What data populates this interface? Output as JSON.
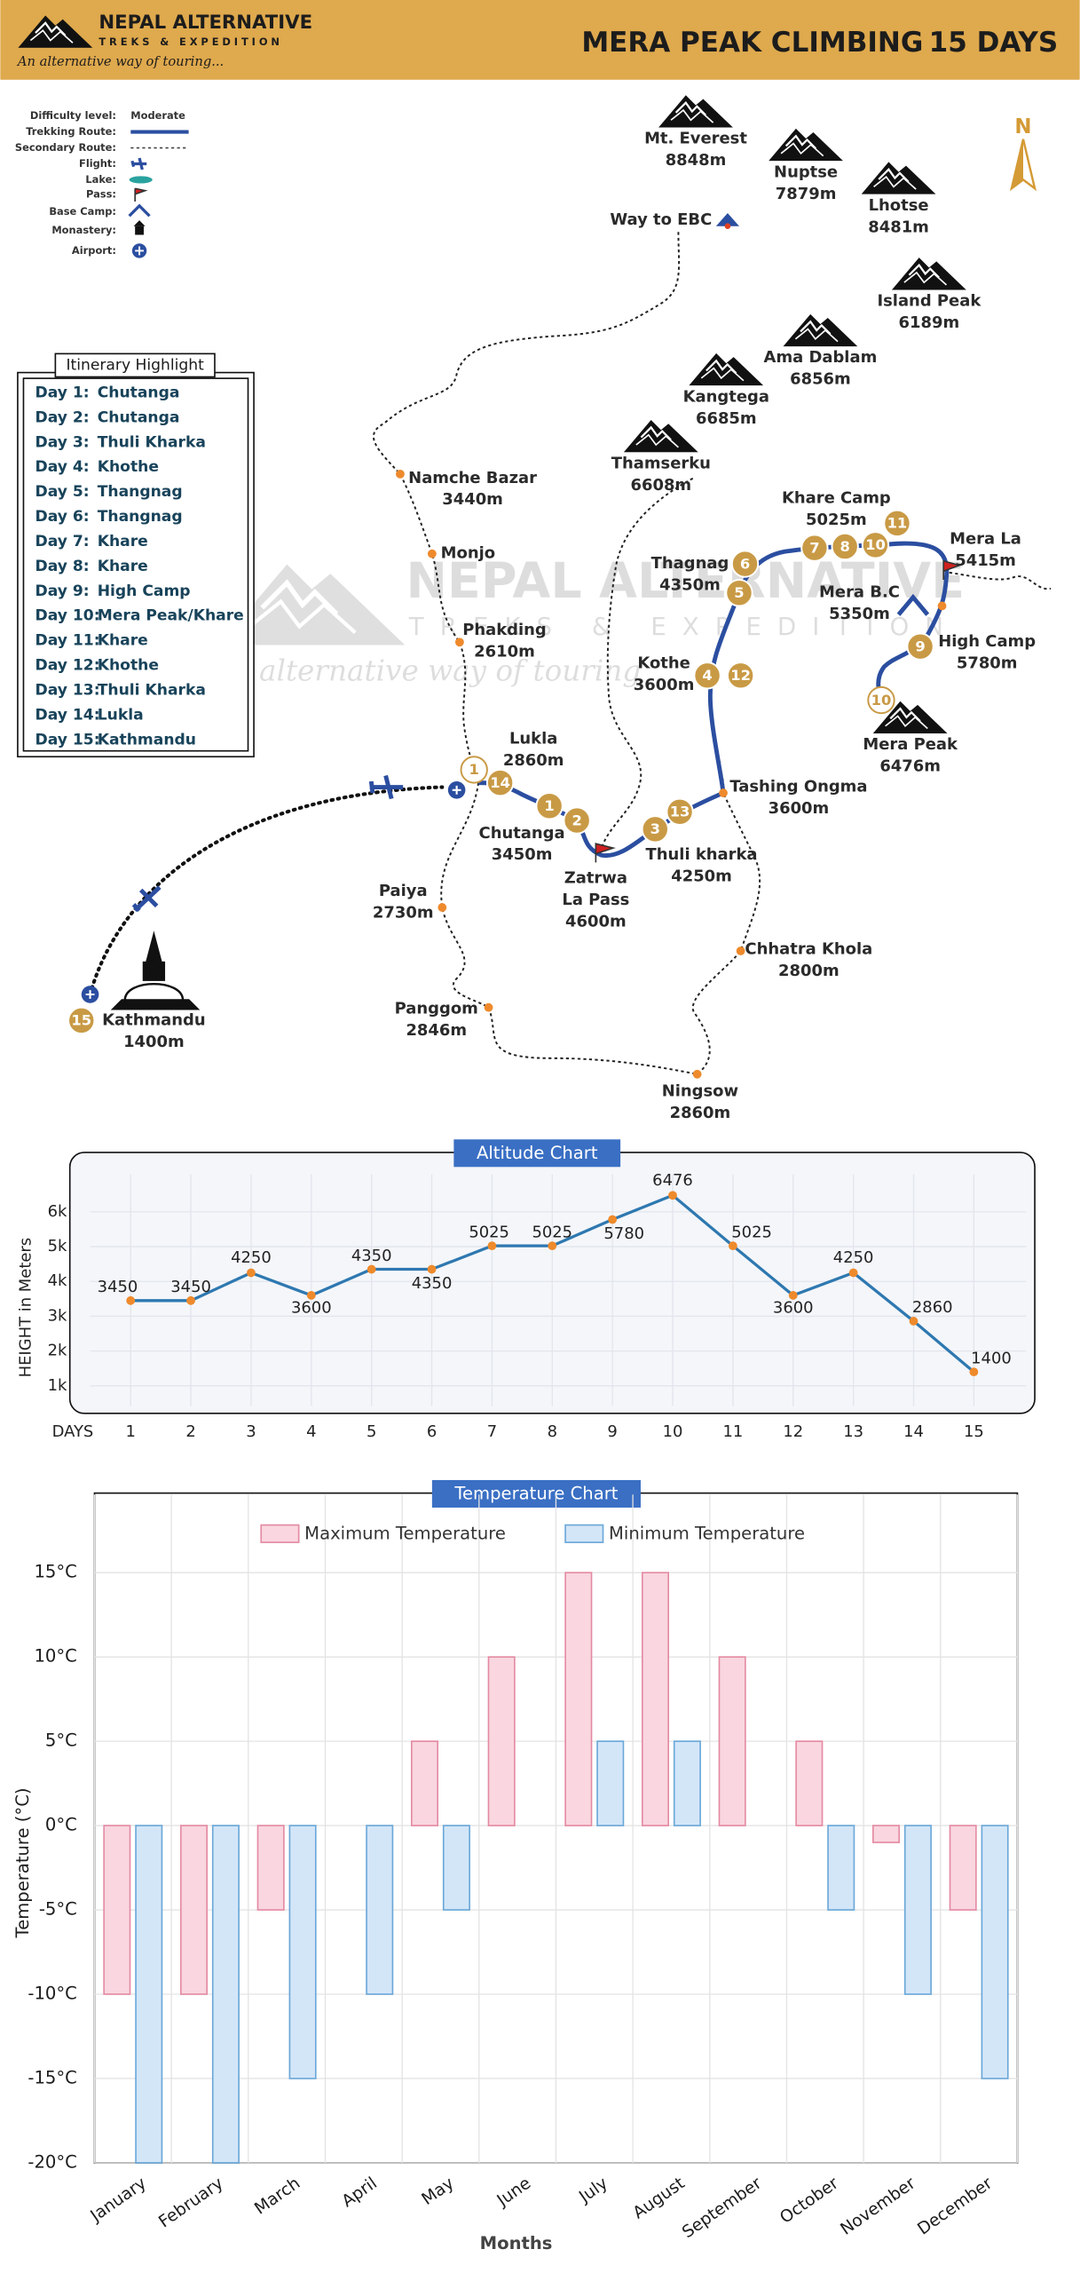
{
  "header": {
    "brand": "NEPAL ALTERNATIVE",
    "brand_sub": "TREKS & EXPEDITION",
    "tagline": "An alternative way of touring...",
    "title": "MERA PEAK CLIMBING",
    "duration": "15 DAYS"
  },
  "legend": {
    "labels": [
      "Difficulty level:",
      "Trekking Route:",
      "Secondary Route:",
      "Flight:",
      "Lake:",
      "Pass:",
      "Base Camp:",
      "Monastery:",
      "Airport:"
    ],
    "difficulty": "Moderate"
  },
  "north": "N",
  "watermark": {
    "brand": "NEPAL ALTERNATIVE",
    "sub": "TREKS & EXPEDITION",
    "tagline": "An alternative way of touring"
  },
  "itinerary": {
    "title": "Itinerary Highlight",
    "days": [
      [
        "Day 1:",
        "Chutanga"
      ],
      [
        "Day 2:",
        "Chutanga"
      ],
      [
        "Day 3:",
        "Thuli Kharka"
      ],
      [
        "Day 4:",
        "Khothe"
      ],
      [
        "Day 5:",
        "Thangnag"
      ],
      [
        "Day 6:",
        "Thangnag"
      ],
      [
        "Day 7:",
        "Khare"
      ],
      [
        "Day 8:",
        "Khare"
      ],
      [
        "Day 9:",
        "High Camp"
      ],
      [
        "Day 10:",
        "Mera Peak/Khare"
      ],
      [
        "Day 11:",
        "Khare"
      ],
      [
        "Day 12:",
        "Khothe"
      ],
      [
        "Day 13:",
        "Thuli Kharka"
      ],
      [
        "Day 14:",
        "Lukla"
      ],
      [
        "Day 15:",
        "Kathmandu"
      ]
    ]
  },
  "peaks": [
    {
      "name": "Mt. Everest",
      "height": "8848m"
    },
    {
      "name": "Nuptse",
      "height": "7879m"
    },
    {
      "name": "Lhotse",
      "height": "8481m"
    },
    {
      "name": "Island Peak",
      "height": "6189m"
    },
    {
      "name": "Ama Dablam",
      "height": "6856m"
    },
    {
      "name": "Kangtega",
      "height": "6685m"
    },
    {
      "name": "Thamserku",
      "height": "6608m"
    },
    {
      "name": "Mera Peak",
      "height": "6476m"
    }
  ],
  "way_to_ebc": "Way to EBC",
  "places": [
    {
      "lines": [
        "Namche Bazar",
        "3440m"
      ]
    },
    {
      "lines": [
        "Monjo"
      ]
    },
    {
      "lines": [
        "Phakding",
        "2610m"
      ]
    },
    {
      "lines": [
        "Lukla",
        "2860m"
      ]
    },
    {
      "lines": [
        "Chutanga",
        "3450m"
      ]
    },
    {
      "lines": [
        "Zatrwa",
        "La Pass",
        "4600m"
      ]
    },
    {
      "lines": [
        "Thuli kharka",
        "4250m"
      ]
    },
    {
      "lines": [
        "Tashing Ongma",
        "3600m"
      ]
    },
    {
      "lines": [
        "Kothe",
        "3600m"
      ]
    },
    {
      "lines": [
        "Thagnag",
        "4350m"
      ]
    },
    {
      "lines": [
        "Khare Camp",
        "5025m"
      ]
    },
    {
      "lines": [
        "Mera La",
        "5415m"
      ]
    },
    {
      "lines": [
        "Mera B.C",
        "5350m"
      ]
    },
    {
      "lines": [
        "High Camp",
        "5780m"
      ]
    },
    {
      "lines": [
        "Paiya",
        "2730m"
      ]
    },
    {
      "lines": [
        "Panggom",
        "2846m"
      ]
    },
    {
      "lines": [
        "Chhatra Khola",
        "2800m"
      ]
    },
    {
      "lines": [
        "Ningsow",
        "2860m"
      ]
    },
    {
      "lines": [
        "Kathmandu",
        "1400m"
      ]
    }
  ],
  "day_markers": [
    "1",
    "2",
    "3",
    "4",
    "5",
    "6",
    "7",
    "8",
    "9",
    "10",
    "11",
    "12",
    "13",
    "14",
    "15",
    "1",
    "10"
  ],
  "chart_data": [
    {
      "type": "line",
      "title": "Altitude Chart",
      "y_label": "HEIGHT in Meters",
      "x_label": "DAYS",
      "x": [
        1,
        2,
        3,
        4,
        5,
        6,
        7,
        8,
        9,
        10,
        11,
        12,
        13,
        14,
        15
      ],
      "values": [
        3450,
        3450,
        4250,
        3600,
        4350,
        4350,
        5025,
        5025,
        5780,
        6476,
        5025,
        3600,
        4250,
        2860,
        1400
      ],
      "color": "#2e78b0",
      "marker_color": "#ee8a2c",
      "xlim": [
        0.2,
        16
      ],
      "xticks": [
        1,
        2,
        3,
        4,
        5,
        6,
        7,
        8,
        9,
        10,
        11,
        12,
        13,
        14,
        15
      ],
      "ylim": [
        250,
        7000
      ],
      "yticks": [
        {
          "value": 1000,
          "label": "1k"
        },
        {
          "value": 2000,
          "label": "2k"
        },
        {
          "value": 3000,
          "label": "3k"
        },
        {
          "value": 4000,
          "label": "4k"
        },
        {
          "value": 5000,
          "label": "5k"
        },
        {
          "value": 6000,
          "label": "6k"
        }
      ],
      "grid": true
    },
    {
      "type": "bar",
      "title": "Temperature Chart",
      "y_label": "Temperature (°C)",
      "x_label": "Months",
      "categories": [
        "January",
        "February",
        "March",
        "April",
        "May",
        "June",
        "July",
        "August",
        "September",
        "October",
        "November",
        "December"
      ],
      "series": [
        {
          "name": "Maximum Temperature",
          "color": "#f9d6e0",
          "edge": "#e48aa2",
          "values": [
            -10,
            -10,
            -5,
            0,
            5,
            10,
            15,
            15,
            10,
            5,
            -1,
            -5
          ]
        },
        {
          "name": "Minimum Temperature",
          "color": "#d3e6f8",
          "edge": "#6aa7d8",
          "values": [
            -20,
            -20,
            -15,
            -10,
            -5,
            0,
            5,
            5,
            0,
            -5,
            -10,
            -15
          ]
        }
      ],
      "ylim": [
        -20,
        20
      ],
      "yticks": [
        {
          "value": -20,
          "label": "-20°C"
        },
        {
          "value": -15,
          "label": "-15°C"
        },
        {
          "value": -10,
          "label": "-10°C"
        },
        {
          "value": -5,
          "label": "-5°C"
        },
        {
          "value": 0,
          "label": "0°C"
        },
        {
          "value": 5,
          "label": "5°C"
        },
        {
          "value": 10,
          "label": "10°C"
        },
        {
          "value": 15,
          "label": "15°C"
        }
      ],
      "grid": true,
      "legend": "top"
    }
  ]
}
